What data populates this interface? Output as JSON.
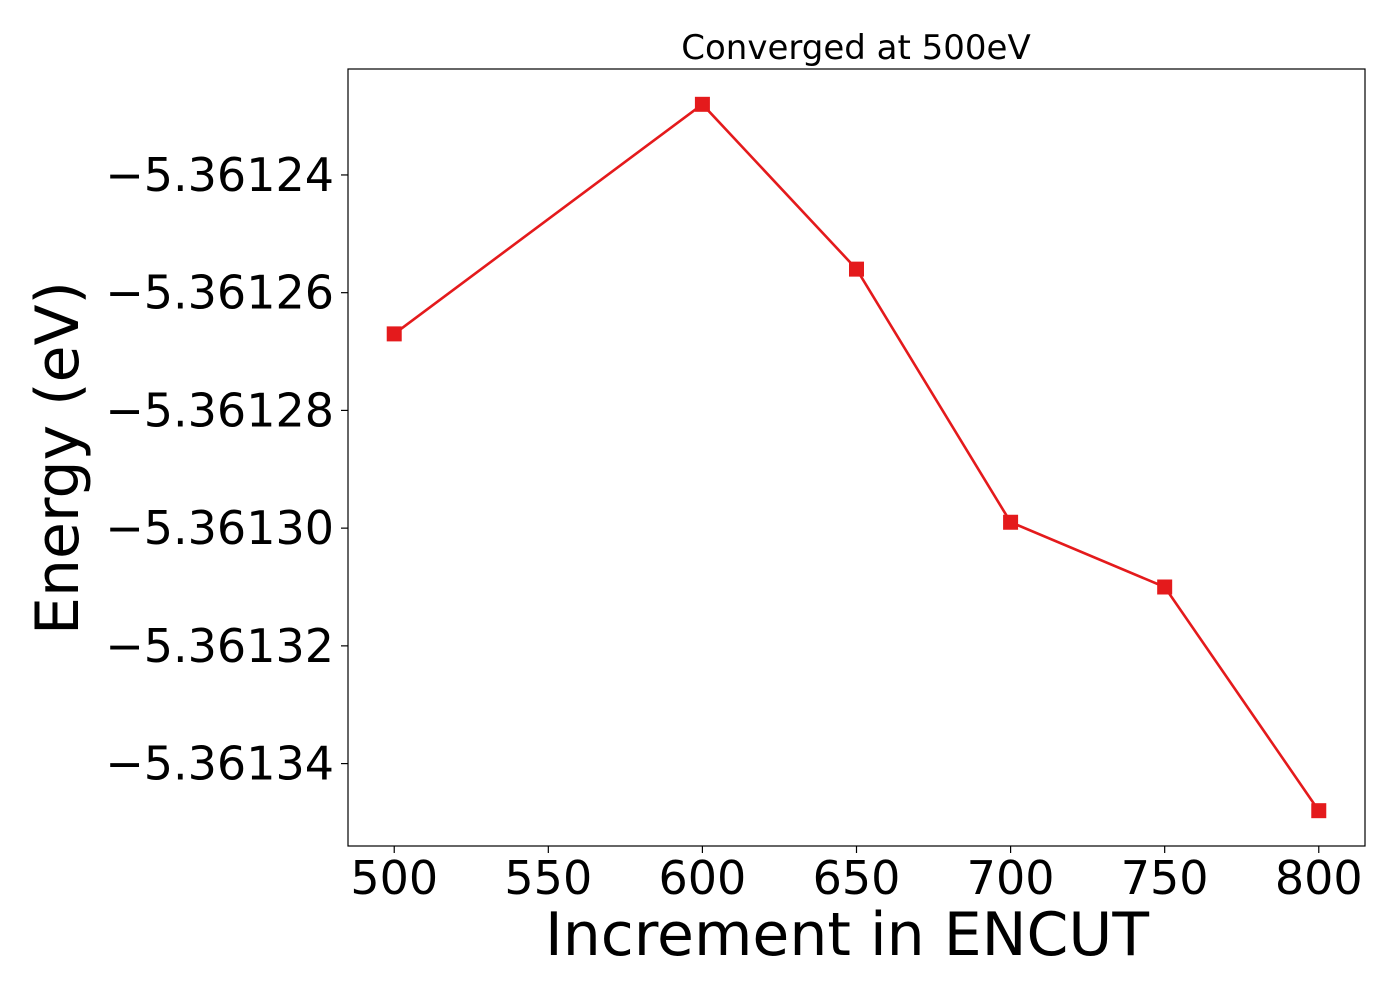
{
  "chart_data": {
    "type": "line",
    "title": "Converged at 500eV",
    "xlabel": "Increment in ENCUT",
    "ylabel": "Energy (eV)",
    "x": [
      500,
      600,
      650,
      700,
      750,
      800
    ],
    "series": [
      {
        "values": [
          -5.361267,
          -5.361228,
          -5.361256,
          -5.361299,
          -5.36131,
          -5.361348
        ],
        "color": "#e41a1c",
        "marker": "square"
      }
    ],
    "xticks": [
      500,
      550,
      600,
      650,
      700,
      750,
      800
    ],
    "xtick_labels": [
      "500",
      "550",
      "600",
      "650",
      "700",
      "750",
      "800"
    ],
    "yticks": [
      -5.36124,
      -5.36126,
      -5.36128,
      -5.3613,
      -5.36132,
      -5.36134
    ],
    "ytick_labels": [
      "−5.36124",
      "−5.36126",
      "−5.36128",
      "−5.36130",
      "−5.36132",
      "−5.36134"
    ],
    "xlim": [
      485,
      815
    ],
    "ylim": [
      -5.361354,
      -5.361222
    ],
    "grid": false,
    "legend": false
  }
}
